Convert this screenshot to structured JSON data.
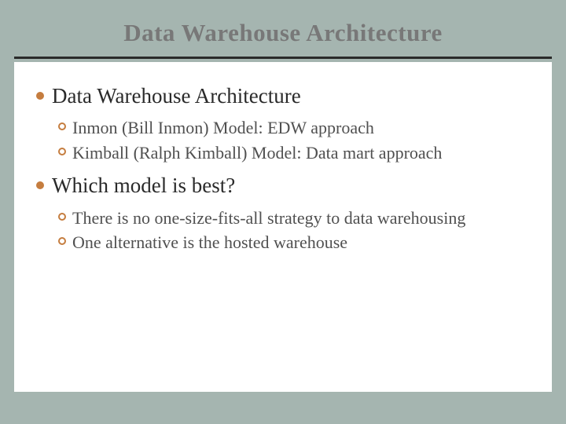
{
  "colors": {
    "slide_bg": "#a5b5b0",
    "content_bg": "#ffffff",
    "title_color": "#787878",
    "divider_color": "#2a2a2a",
    "bullet_color": "#c57d3f",
    "level1_text_color": "#2a2a2a",
    "level2_text_color": "#505050"
  },
  "typography": {
    "font_family": "Georgia, 'Times New Roman', serif",
    "title_fontsize": 31,
    "title_weight": "bold",
    "level1_fontsize": 27,
    "level2_fontsize": 22
  },
  "title": "Data Warehouse Architecture",
  "sections": [
    {
      "heading": "Data Warehouse Architecture",
      "items": [
        "Inmon (Bill Inmon) Model: EDW approach",
        "Kimball (Ralph Kimball) Model: Data mart approach"
      ]
    },
    {
      "heading": "Which model is best?",
      "items": [
        "There is no one-size-fits-all strategy to data warehousing",
        "One alternative is the hosted warehouse"
      ]
    }
  ]
}
